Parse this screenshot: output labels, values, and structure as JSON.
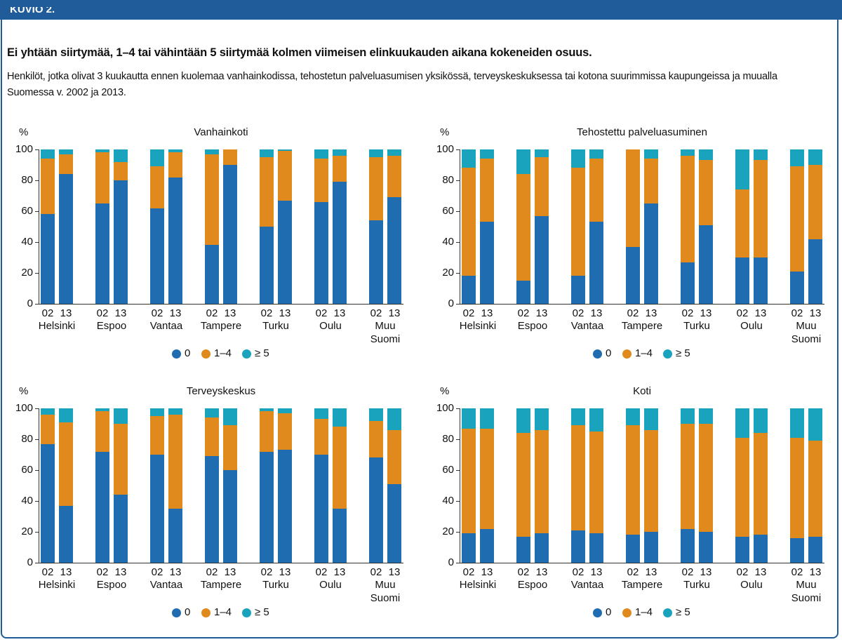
{
  "header": "KUVIO 2.",
  "title": "Ei yhtään siirtymää, 1–4 tai vähintään 5 siirtymää kolmen viimeisen elinkuukauden aikana kokeneiden osuus.",
  "subtitle": "Henkilöt, jotka olivat 3 kuukautta ennen kuolemaa vanhainkodissa, tehostetun palveluasumisen yksikössä, terveyskeskuksessa tai kotona suurimmissa kaupungeissa ja muualla Suomessa v. 2002 ja 2013.",
  "chart_data": [
    {
      "type": "bar",
      "stacked": true,
      "title": "Vanhainkoti",
      "y_label": "%",
      "groups": [
        "Helsinki",
        "Espoo",
        "Vantaa",
        "Tampere",
        "Turku",
        "Oulu",
        "Muu Suomi"
      ],
      "categories": [
        "02",
        "13",
        "02",
        "13",
        "02",
        "13",
        "02",
        "13",
        "02",
        "13",
        "02",
        "13",
        "02",
        "13"
      ],
      "series": [
        {
          "name": "0",
          "color": "#1f6cb0",
          "values": [
            58,
            84,
            65,
            80,
            62,
            82,
            38,
            90,
            50,
            67,
            66,
            79,
            54,
            69
          ]
        },
        {
          "name": "1–4",
          "color": "#e08a1e",
          "values": [
            36,
            13,
            33,
            12,
            27,
            16,
            59,
            10,
            45,
            32,
            28,
            17,
            41,
            27
          ]
        },
        {
          "name": "≥ 5",
          "color": "#1aa3bd",
          "values": [
            6,
            3,
            2,
            8,
            11,
            2,
            3,
            0,
            5,
            1,
            6,
            4,
            5,
            4
          ]
        }
      ],
      "ylim": [
        0,
        100
      ],
      "yticks": [
        0,
        20,
        40,
        60,
        80,
        100
      ]
    },
    {
      "type": "bar",
      "stacked": true,
      "title": "Tehostettu palveluasuminen",
      "y_label": "%",
      "groups": [
        "Helsinki",
        "Espoo",
        "Vantaa",
        "Tampere",
        "Turku",
        "Oulu",
        "Muu Suomi"
      ],
      "categories": [
        "02",
        "13",
        "02",
        "13",
        "02",
        "13",
        "02",
        "13",
        "02",
        "13",
        "02",
        "13",
        "02",
        "13"
      ],
      "series": [
        {
          "name": "0",
          "color": "#1f6cb0",
          "values": [
            18,
            53,
            15,
            57,
            18,
            53,
            37,
            65,
            27,
            51,
            30,
            30,
            21,
            42
          ]
        },
        {
          "name": "1–4",
          "color": "#e08a1e",
          "values": [
            70,
            41,
            69,
            38,
            70,
            41,
            63,
            29,
            69,
            42,
            44,
            63,
            68,
            48
          ]
        },
        {
          "name": "≥ 5",
          "color": "#1aa3bd",
          "values": [
            12,
            6,
            16,
            5,
            12,
            6,
            0,
            6,
            4,
            7,
            26,
            7,
            11,
            10
          ]
        }
      ],
      "ylim": [
        0,
        100
      ],
      "yticks": [
        0,
        20,
        40,
        60,
        80,
        100
      ]
    },
    {
      "type": "bar",
      "stacked": true,
      "title": "Terveyskeskus",
      "y_label": "%",
      "groups": [
        "Helsinki",
        "Espoo",
        "Vantaa",
        "Tampere",
        "Turku",
        "Oulu",
        "Muu Suomi"
      ],
      "categories": [
        "02",
        "13",
        "02",
        "13",
        "02",
        "13",
        "02",
        "13",
        "02",
        "13",
        "02",
        "13",
        "02",
        "13"
      ],
      "series": [
        {
          "name": "0",
          "color": "#1f6cb0",
          "values": [
            77,
            37,
            72,
            44,
            70,
            35,
            69,
            60,
            72,
            73,
            70,
            35,
            68,
            51
          ]
        },
        {
          "name": "1–4",
          "color": "#e08a1e",
          "values": [
            19,
            54,
            26,
            46,
            25,
            61,
            25,
            29,
            26,
            24,
            23,
            53,
            24,
            35
          ]
        },
        {
          "name": "≥ 5",
          "color": "#1aa3bd",
          "values": [
            4,
            9,
            2,
            10,
            5,
            4,
            6,
            11,
            2,
            3,
            7,
            12,
            8,
            14
          ]
        }
      ],
      "ylim": [
        0,
        100
      ],
      "yticks": [
        0,
        20,
        40,
        60,
        80,
        100
      ]
    },
    {
      "type": "bar",
      "stacked": true,
      "title": "Koti",
      "y_label": "%",
      "groups": [
        "Helsinki",
        "Espoo",
        "Vantaa",
        "Tampere",
        "Turku",
        "Oulu",
        "Muu Suomi"
      ],
      "categories": [
        "02",
        "13",
        "02",
        "13",
        "02",
        "13",
        "02",
        "13",
        "02",
        "13",
        "02",
        "13",
        "02",
        "13"
      ],
      "series": [
        {
          "name": "0",
          "color": "#1f6cb0",
          "values": [
            19,
            22,
            17,
            19,
            21,
            19,
            18,
            20,
            22,
            20,
            17,
            18,
            16,
            17
          ]
        },
        {
          "name": "1–4",
          "color": "#e08a1e",
          "values": [
            68,
            65,
            67,
            67,
            68,
            66,
            71,
            66,
            68,
            70,
            64,
            66,
            65,
            62
          ]
        },
        {
          "name": "≥ 5",
          "color": "#1aa3bd",
          "values": [
            13,
            13,
            16,
            14,
            11,
            15,
            11,
            14,
            10,
            10,
            19,
            16,
            19,
            21
          ]
        }
      ],
      "ylim": [
        0,
        100
      ],
      "yticks": [
        0,
        20,
        40,
        60,
        80,
        100
      ]
    }
  ]
}
